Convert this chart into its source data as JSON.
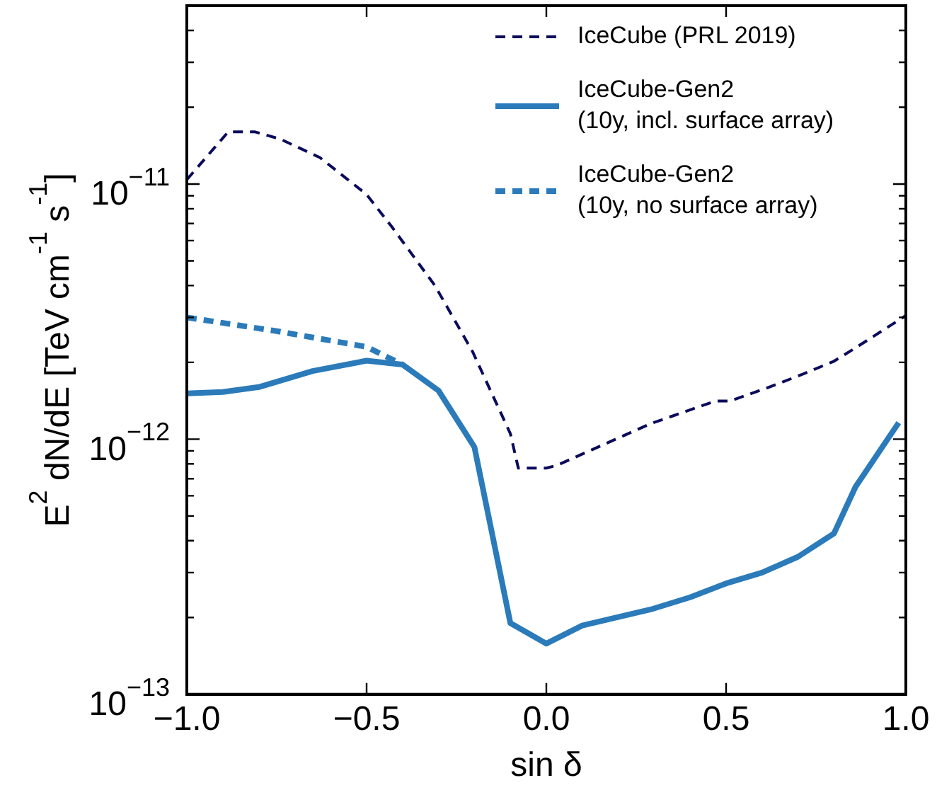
{
  "chart_data": {
    "type": "line",
    "xlabel": "sin δ",
    "ylabel": "E$^{2}$ dN/dE [TeV cm$^{-1}$ s$^{-1}$]",
    "log": "y",
    "grid": false,
    "legend": "top right",
    "marker": "none",
    "xlim": [
      -1,
      1
    ],
    "xticks": [
      {
        "value": -1,
        "label": "−1.0"
      },
      {
        "value": -0.5,
        "label": "−0.5"
      },
      {
        "value": 0,
        "label": "0.0"
      },
      {
        "value": 0.5,
        "label": "0.5"
      },
      {
        "value": 1,
        "label": "1.0"
      }
    ],
    "ylim": [
      1e-13,
      5e-11
    ],
    "yticks": [
      {
        "value": 1e-13,
        "label": "10$^{−13}$"
      },
      {
        "value": 2e-13,
        "label": null
      },
      {
        "value": 3e-13,
        "label": null
      },
      {
        "value": 4e-13,
        "label": null
      },
      {
        "value": 5e-13,
        "label": null
      },
      {
        "value": 6e-13,
        "label": null
      },
      {
        "value": 7e-13,
        "label": null
      },
      {
        "value": 8e-13,
        "label": null
      },
      {
        "value": 9e-13,
        "label": null
      },
      {
        "value": 1e-12,
        "label": "10$^{−12}$"
      },
      {
        "value": 2e-12,
        "label": null
      },
      {
        "value": 3e-12,
        "label": null
      },
      {
        "value": 4e-12,
        "label": null
      },
      {
        "value": 5e-12,
        "label": null
      },
      {
        "value": 6e-12,
        "label": null
      },
      {
        "value": 7e-12,
        "label": null
      },
      {
        "value": 8e-12,
        "label": null
      },
      {
        "value": 9e-12,
        "label": null
      },
      {
        "value": 1e-11,
        "label": "10$^{−11}$"
      },
      {
        "value": 2e-11,
        "label": null
      },
      {
        "value": 3e-11,
        "label": null
      },
      {
        "value": 4e-11,
        "label": null
      }
    ],
    "series": [
      {
        "name": "IceCube (PRL 2019)",
        "color": "#0b0b5c",
        "line_style": "dashed",
        "x": [
          -1,
          -0.885,
          -0.81,
          -0.74,
          -0.63,
          -0.5,
          -0.43,
          -0.31,
          -0.205,
          -0.1,
          -0.078,
          0,
          0.03,
          0.12,
          0.29,
          0.47,
          0.51,
          0.61,
          0.71,
          0.8,
          0.86,
          1
        ],
        "values": [
          1.04e-11,
          1.6e-11,
          1.6e-11,
          1.5e-11,
          1.27e-11,
          9.1e-12,
          6.8e-12,
          4e-12,
          2.2e-12,
          1.05e-12,
          7.7e-13,
          7.7e-13,
          7.9e-13,
          9e-13,
          1.15e-12,
          1.41e-12,
          1.41e-12,
          1.58e-12,
          1.79e-12,
          2.02e-12,
          2.28e-12,
          3.05e-12
        ]
      },
      {
        "name": "IceCube-Gen2\n(10y, incl. surface array)",
        "color": "#2b7bba",
        "line_style": "solid",
        "x": [
          -1,
          -0.9,
          -0.8,
          -0.65,
          -0.5,
          -0.4,
          -0.3,
          -0.2,
          -0.1,
          0,
          0.1,
          0.29,
          0.4,
          0.5,
          0.6,
          0.7,
          0.8,
          0.86,
          0.98
        ],
        "values": [
          1.51e-12,
          1.53e-12,
          1.6e-12,
          1.85e-12,
          2.03e-12,
          1.96e-12,
          1.55e-12,
          9.3e-13,
          1.9e-13,
          1.58e-13,
          1.86e-13,
          2.15e-13,
          2.4e-13,
          2.72e-13,
          3e-13,
          3.46e-13,
          4.27e-13,
          6.5e-13,
          1.16e-12
        ]
      },
      {
        "name": "IceCube-Gen2\n(10y, no surface array)",
        "color": "#2b7bba",
        "line_style": "dashed",
        "x": [
          -1,
          -0.75,
          -0.5,
          -0.4
        ],
        "values": [
          3e-12,
          2.65e-12,
          2.3e-12,
          1.96e-12
        ]
      }
    ]
  }
}
